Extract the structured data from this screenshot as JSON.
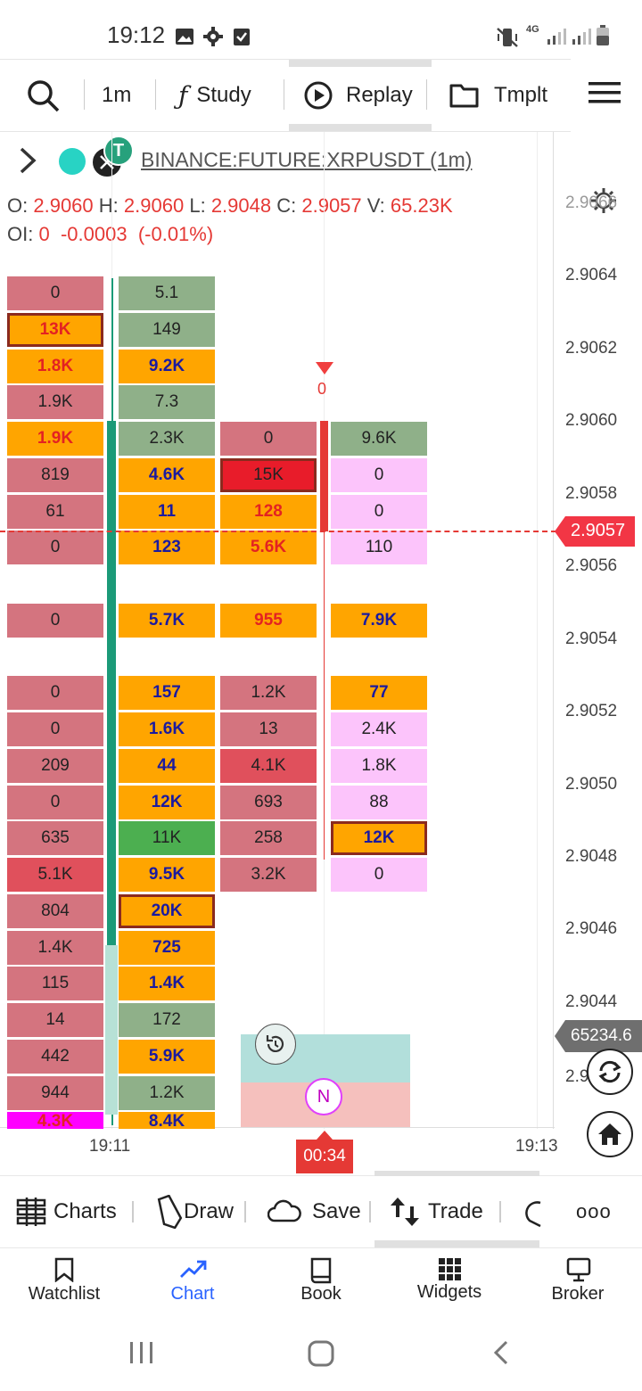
{
  "status_bar": {
    "time": "19:12",
    "network": "4G"
  },
  "toolbar": {
    "interval": "1m",
    "study_label": "Study",
    "replay_label": "Replay",
    "template_label": "Tmplt"
  },
  "symbol": {
    "name": "BINANCE:FUTURE:XRPUSDT (1m)",
    "ohlcv": {
      "o_label": "O:",
      "o": "2.9060",
      "h_label": "H:",
      "h": "2.9060",
      "l_label": "L:",
      "l": "2.9048",
      "c_label": "C:",
      "c": "2.9057",
      "v_label": "V:",
      "v": "65.23K"
    },
    "oi": {
      "label": "OI:",
      "value": "0",
      "change": "-0.0003",
      "change_pct": "(-0.01%)"
    }
  },
  "price_axis": {
    "labels": [
      "2.9064",
      "2.9062",
      "2.9060",
      "2.9058",
      "2.9056",
      "2.9054",
      "2.9052",
      "2.9050",
      "2.9048",
      "2.9046",
      "2.9044"
    ],
    "top_partial": "2.9066",
    "lower_partial": "2.9",
    "current_price": "2.9057",
    "volume_label": "65234.6"
  },
  "time_axis": {
    "labels": [
      "19:11",
      "19:13"
    ],
    "countdown": "00:34"
  },
  "chart": {
    "marker_value": "0",
    "news_badge": "N",
    "col1": [
      "0",
      "13K",
      "1.8K",
      "1.9K",
      "1.9K",
      "819",
      "61",
      "0",
      "",
      "0",
      "",
      "0",
      "0",
      "209",
      "0",
      "635",
      "5.1K",
      "804",
      "1.4K",
      "115",
      "14",
      "442",
      "944",
      "4.3K"
    ],
    "col2": [
      "5.1",
      "149",
      "9.2K",
      "7.3",
      "2.3K",
      "4.6K",
      "11",
      "123",
      "",
      "5.7K",
      "",
      "157",
      "1.6K",
      "44",
      "12K",
      "11K",
      "9.5K",
      "20K",
      "725",
      "1.4K",
      "172",
      "5.9K",
      "1.2K",
      "8.4K"
    ],
    "col3": [
      "0",
      "15K",
      "128",
      "5.6K",
      "",
      "955",
      "",
      "1.2K",
      "13",
      "4.1K",
      "693",
      "258",
      "3.2K"
    ],
    "col4": [
      "9.6K",
      "0",
      "0",
      "110",
      "",
      "7.9K",
      "",
      "77",
      "2.4K",
      "1.8K",
      "88",
      "12K",
      "0"
    ]
  },
  "bottom_tools": {
    "charts": "Charts",
    "draw": "Draw",
    "save": "Save",
    "trade": "Trade",
    "more": "ooo"
  },
  "tabs": [
    "Watchlist",
    "Chart",
    "Book",
    "Widgets",
    "Broker"
  ],
  "colors": {
    "accent": "#2962ff",
    "price_line": "#e53935",
    "cell_orange": "#ffa500",
    "cell_pink": "#d4747f"
  }
}
